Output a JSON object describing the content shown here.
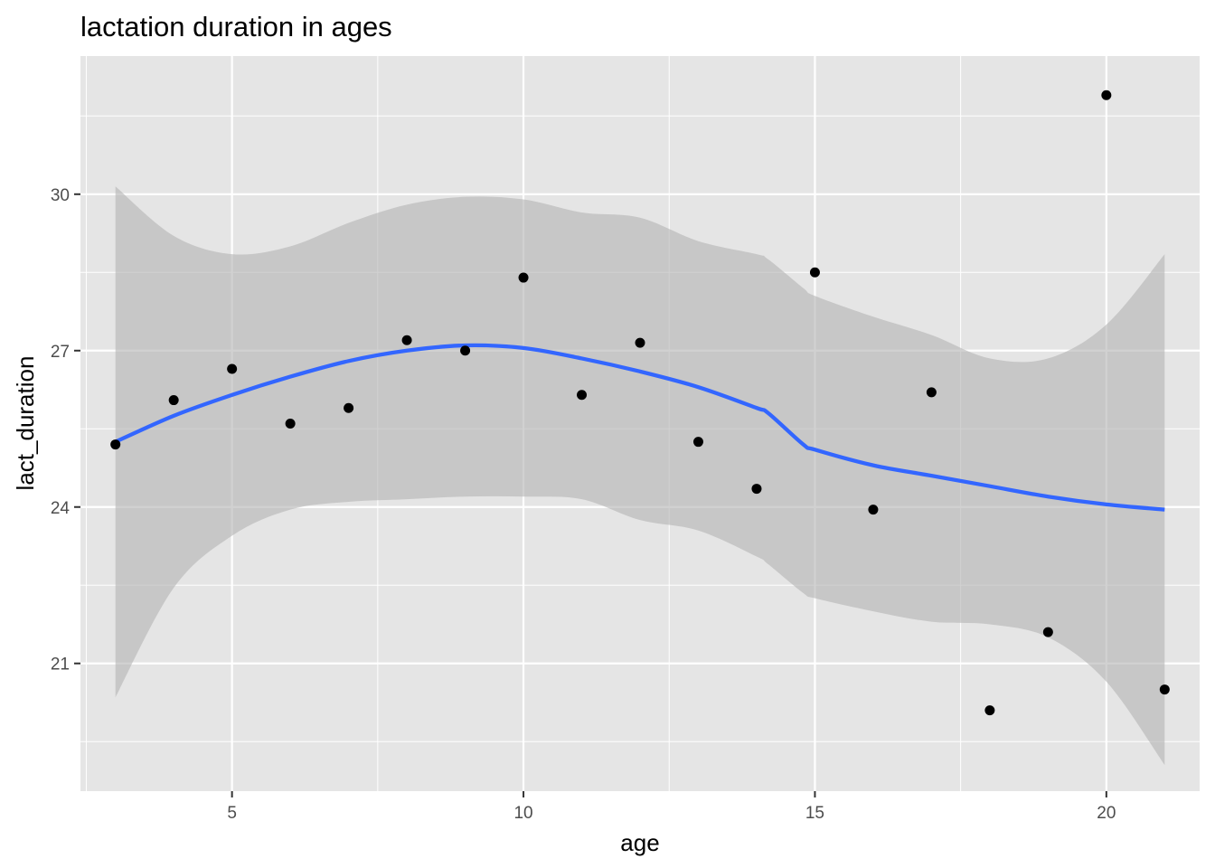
{
  "chart_data": {
    "type": "scatter",
    "title": "lactation duration in ages",
    "xlabel": "age",
    "ylabel": "lact_duration",
    "xlim": [
      2.4,
      21.6
    ],
    "ylim": [
      18.55,
      32.65
    ],
    "x_ticks": [
      5,
      10,
      15,
      20
    ],
    "x_tick_labels": [
      "5",
      "10",
      "15",
      "20"
    ],
    "y_ticks": [
      21,
      24,
      27,
      30
    ],
    "y_tick_labels": [
      "21",
      "24",
      "27",
      "30"
    ],
    "grid": true,
    "legend": "none",
    "colors": {
      "panel": "#e5e5e5",
      "grid": "#ffffff",
      "points": "#000000",
      "smooth_line": "#3366ff",
      "ribbon": "#b3b3b3"
    },
    "points": {
      "x": [
        3,
        4,
        5,
        6,
        7,
        8,
        9,
        10,
        11,
        12,
        13,
        14,
        15,
        16,
        17,
        18,
        19,
        20,
        21
      ],
      "y": [
        25.2,
        26.05,
        26.65,
        25.6,
        25.9,
        27.2,
        27.0,
        28.4,
        26.15,
        27.15,
        25.25,
        24.35,
        28.5,
        23.95,
        26.2,
        20.1,
        21.6,
        31.9,
        20.5
      ]
    },
    "smooth": {
      "x": [
        3,
        4,
        5,
        6,
        7,
        8,
        9,
        10,
        11,
        12,
        13,
        14,
        14.2,
        14.8,
        15,
        16,
        17,
        18,
        19,
        20,
        21
      ],
      "y": [
        25.25,
        25.75,
        26.15,
        26.5,
        26.8,
        27.0,
        27.1,
        27.05,
        26.85,
        26.6,
        26.3,
        25.9,
        25.8,
        25.2,
        25.1,
        24.8,
        24.6,
        24.4,
        24.2,
        24.05,
        23.95
      ],
      "upper": [
        30.15,
        29.2,
        28.85,
        29.0,
        29.45,
        29.8,
        29.95,
        29.9,
        29.65,
        29.55,
        29.1,
        28.85,
        28.75,
        28.2,
        28.05,
        27.65,
        27.3,
        26.85,
        26.85,
        27.5,
        28.85
      ],
      "lower": [
        20.35,
        22.45,
        23.45,
        23.95,
        24.1,
        24.15,
        24.2,
        24.2,
        24.15,
        23.75,
        23.55,
        23.05,
        22.9,
        22.35,
        22.25,
        22.0,
        21.8,
        21.75,
        21.5,
        20.65,
        19.05
      ]
    }
  }
}
